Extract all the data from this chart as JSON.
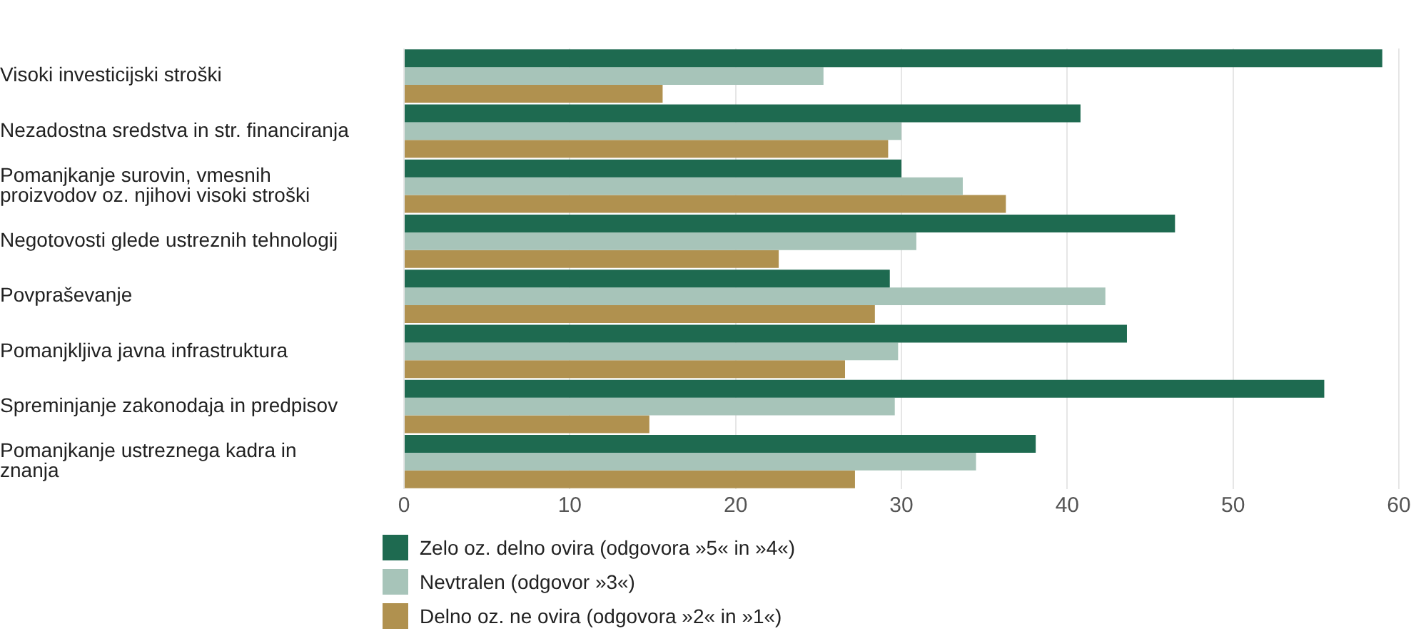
{
  "chart_data": {
    "type": "bar",
    "orientation": "horizontal",
    "categories": [
      "Visoki investicijski stroški",
      "Nezadostna sredstva in str. financiranja",
      "Pomanjkanje surovin, vmesnih proizvodov oz. njihovi visoki stroški",
      "Negotovosti glede ustreznih tehnologij",
      "Povpraševanje",
      "Pomanjkljiva javna infrastruktura",
      "Spreminjanje zakonodaja in predpisov",
      "Pomanjkanje ustreznega kadra in znanja"
    ],
    "series": [
      {
        "name": "Zelo oz. delno ovira (odgovora »5« in »4«)",
        "color": "#1e6a50",
        "values": [
          59.0,
          40.8,
          30.0,
          46.5,
          29.3,
          43.6,
          55.5,
          38.1
        ]
      },
      {
        "name": "Nevtralen (odgovor »3«)",
        "color": "#a7c4b9",
        "values": [
          25.3,
          30.0,
          33.7,
          30.9,
          42.3,
          29.8,
          29.6,
          34.5
        ]
      },
      {
        "name": "Delno oz. ne ovira (odgovora »2« in »1«)",
        "color": "#b0914f",
        "values": [
          15.6,
          29.2,
          36.3,
          22.6,
          28.4,
          26.6,
          14.8,
          27.2
        ]
      }
    ],
    "xlim": [
      0,
      60
    ],
    "xticks": [
      0,
      10,
      20,
      30,
      40,
      50,
      60
    ],
    "grid": "x",
    "legend": "bottom"
  }
}
